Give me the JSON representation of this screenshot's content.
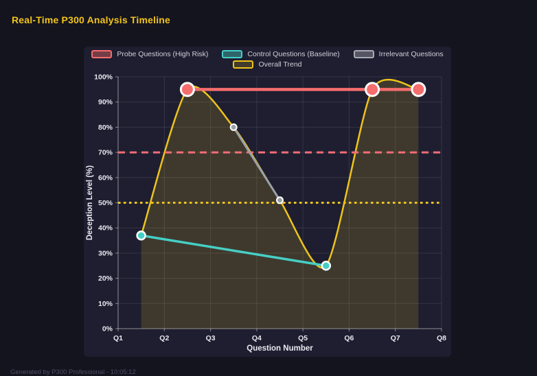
{
  "title": "Real-Time P300 Analysis Timeline",
  "footer": {
    "text": "Generated by P300 Professional - 10:05:12"
  },
  "colors": {
    "page_bg": "#14141f",
    "card_bg": "#1e1e30",
    "title": "#f2c41d",
    "grid": "rgba(255,255,255,0.10)",
    "axis": "rgba(255,255,255,0.45)",
    "tick_text": "#e9e9f2",
    "legend_text": "#cfd0da",
    "footer_text": "#4b5066",
    "point_border": "#ffffff"
  },
  "legend": {
    "items": [
      {
        "label": "Probe Questions (High Risk)",
        "color": "#f56d6d",
        "swatch_fill_alpha": 0.4
      },
      {
        "label": "Control Questions (Baseline)",
        "color": "#46cfc6",
        "swatch_fill_alpha": 0.4
      },
      {
        "label": "Irrelevant Questions",
        "color": "#a7abb3",
        "swatch_fill_alpha": 0.4
      },
      {
        "label": "Overall Trend",
        "color": "#eec41c",
        "swatch_fill_alpha": 0.18
      }
    ]
  },
  "chart_data": {
    "type": "line",
    "title": "Real-Time P300 Analysis Timeline",
    "xlabel": "Question Number",
    "ylabel": "Deception Level (%)",
    "x_tick_labels": [
      "Q1",
      "Q2",
      "Q3",
      "Q4",
      "Q5",
      "Q6",
      "Q7",
      "Q8"
    ],
    "x_range": [
      1,
      8
    ],
    "y_range": [
      0,
      100
    ],
    "y_tick_step": 10,
    "y_tick_suffix": "%",
    "grid": true,
    "legend_position": "top",
    "series": [
      {
        "name": "Probe Questions (High Risk)",
        "style": "line",
        "color": "#f56d6d",
        "x": [
          2.5,
          6.5,
          7.5
        ],
        "y": [
          95,
          95,
          95
        ],
        "line_width": 4.5,
        "point_radius": 9.5
      },
      {
        "name": "Control Questions (Baseline)",
        "style": "line",
        "color": "#46cfc6",
        "x": [
          1.5,
          5.5
        ],
        "y": [
          37,
          25
        ],
        "line_width": 3.5,
        "point_radius": 6
      },
      {
        "name": "Irrelevant Questions",
        "style": "line",
        "color": "#9aa0a6",
        "x": [
          3.5,
          4.5
        ],
        "y": [
          80,
          51
        ],
        "line_width": 3,
        "point_radius": 4.5
      },
      {
        "name": "Overall Trend",
        "style": "spline-area",
        "color": "#eec41c",
        "fill": "rgba(238,196,28,0.16)",
        "x": [
          1.5,
          2.5,
          3.5,
          4.5,
          5.5,
          6.5,
          7.5
        ],
        "y": [
          37,
          95,
          80,
          51,
          25,
          95,
          95
        ],
        "line_width": 2.5,
        "point_radius": 0
      }
    ],
    "thresholds": [
      {
        "y": 70,
        "color": "#f56d77",
        "dash": "10 7",
        "width": 3
      },
      {
        "y": 50,
        "color": "#eec41c",
        "dash": "3.5 4.5",
        "width": 3
      }
    ]
  }
}
